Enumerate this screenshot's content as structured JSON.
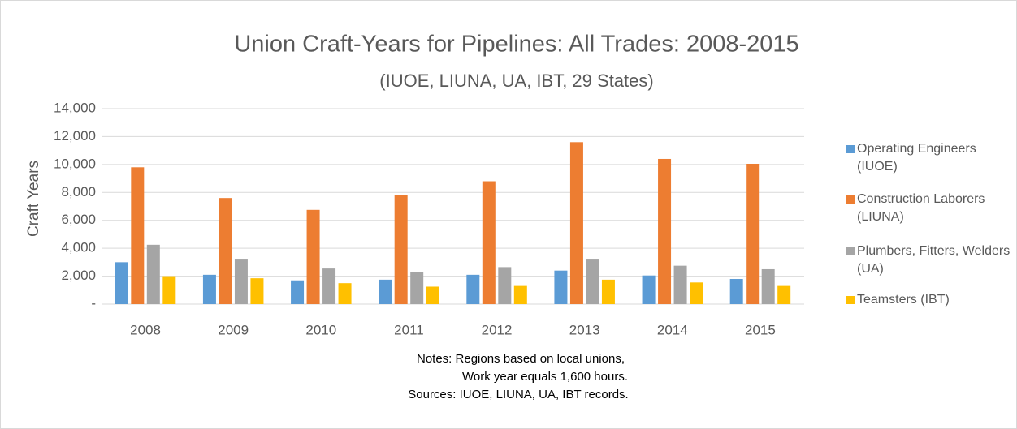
{
  "chart_data": {
    "type": "bar",
    "title": "Union Craft-Years for Pipelines:  All Trades:  2008-2015",
    "subtitle": "(IUOE, LIUNA, UA, IBT, 29 States)",
    "y_label": "Craft Years",
    "categories": [
      "2008",
      "2009",
      "2010",
      "2011",
      "2012",
      "2013",
      "2014",
      "2015"
    ],
    "series": [
      {
        "name": "Operating Engineers (IUOE)",
        "color": "#5b9bd5",
        "values": [
          3000,
          2100,
          1700,
          1750,
          2100,
          2400,
          2050,
          1800
        ]
      },
      {
        "name": "Construction Laborers (LIUNA)",
        "color": "#ed7d31",
        "values": [
          9800,
          7600,
          6750,
          7800,
          8800,
          11600,
          10400,
          10050
        ]
      },
      {
        "name": "Plumbers, Fitters, Welders (UA)",
        "color": "#a5a5a5",
        "values": [
          4250,
          3250,
          2550,
          2300,
          2650,
          3250,
          2750,
          2500
        ]
      },
      {
        "name": "Teamsters (IBT)",
        "color": "#ffc000",
        "values": [
          2000,
          1850,
          1500,
          1250,
          1300,
          1750,
          1550,
          1300
        ]
      }
    ],
    "ylim": [
      0,
      14000
    ],
    "yticks": [
      {
        "value": 0,
        "label": "-"
      },
      {
        "value": 2000,
        "label": "2,000"
      },
      {
        "value": 4000,
        "label": "4,000"
      },
      {
        "value": 6000,
        "label": "6,000"
      },
      {
        "value": 8000,
        "label": "8,000"
      },
      {
        "value": 10000,
        "label": "10,000"
      },
      {
        "value": 12000,
        "label": "12,000"
      },
      {
        "value": 14000,
        "label": "14,000"
      }
    ],
    "grid": true,
    "legend": "right",
    "notes": [
      "Notes:  Regions based on local unions,",
      "Work year equals 1,600 hours.",
      "Sources: IUOE, LIUNA, UA, IBT records."
    ]
  }
}
